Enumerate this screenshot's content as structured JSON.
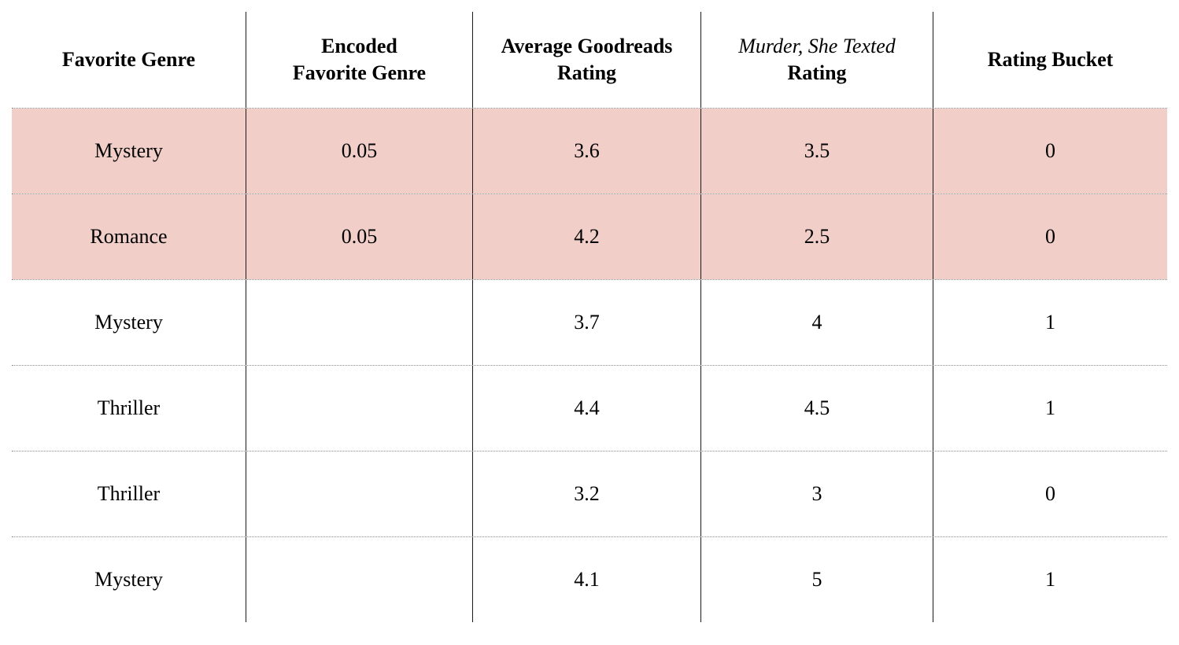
{
  "colors": {
    "row_highlight": "#f1cec8",
    "column_line": "#1a1a1a",
    "row_divider": "#8a8a8a"
  },
  "table": {
    "headers": [
      {
        "line1": "Favorite Genre",
        "line2": ""
      },
      {
        "line1": "Encoded",
        "line2": "Favorite Genre"
      },
      {
        "line1": "Average Goodreads",
        "line2": "Rating"
      },
      {
        "line1": "Murder, She Texted",
        "line2": "Rating"
      },
      {
        "line1": "Rating Bucket",
        "line2": ""
      }
    ],
    "rows": [
      {
        "cells": [
          "Mystery",
          "0.05",
          "3.6",
          "3.5",
          "0"
        ],
        "highlighted": true
      },
      {
        "cells": [
          "Romance",
          "0.05",
          "4.2",
          "2.5",
          "0"
        ],
        "highlighted": true
      },
      {
        "cells": [
          "Mystery",
          "",
          "3.7",
          "4",
          "1"
        ],
        "highlighted": false
      },
      {
        "cells": [
          "Thriller",
          "",
          "4.4",
          "4.5",
          "1"
        ],
        "highlighted": false
      },
      {
        "cells": [
          "Thriller",
          "",
          "3.2",
          "3",
          "0"
        ],
        "highlighted": false
      },
      {
        "cells": [
          "Mystery",
          "",
          "4.1",
          "5",
          "1"
        ],
        "highlighted": false
      }
    ]
  },
  "chart_data": {
    "type": "table",
    "columns": [
      "Favorite Genre",
      "Encoded Favorite Genre",
      "Average Goodreads Rating",
      "Murder, She Texted Rating",
      "Rating Bucket"
    ],
    "rows": [
      [
        "Mystery",
        "0.05",
        "3.6",
        "3.5",
        "0"
      ],
      [
        "Romance",
        "0.05",
        "4.2",
        "2.5",
        "0"
      ],
      [
        "Mystery",
        "",
        "3.7",
        "4",
        "1"
      ],
      [
        "Thriller",
        "",
        "4.4",
        "4.5",
        "1"
      ],
      [
        "Thriller",
        "",
        "3.2",
        "3",
        "0"
      ],
      [
        "Mystery",
        "",
        "4.1",
        "5",
        "1"
      ]
    ],
    "highlighted_row_indices": [
      0,
      1
    ],
    "notes": "Rows 0 and 1 have a pink highlight background; column 4 header title is italicized"
  }
}
